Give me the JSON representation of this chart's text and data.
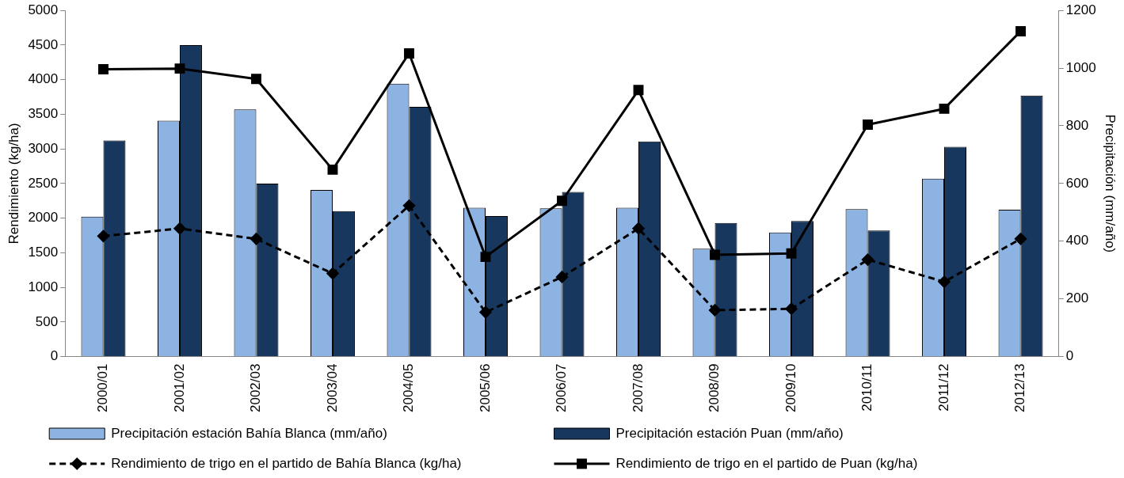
{
  "chart_data": {
    "type": "bar",
    "ylabel": "Rendimiento (kg/ha)",
    "y2label": "Precipitación (mm/año)",
    "categories": [
      "2000/01",
      "2001/02",
      "2002/03",
      "2003/04",
      "2004/05",
      "2005/06",
      "2006/07",
      "2007/08",
      "2008/09",
      "2009/10",
      "2010/11",
      "2011/12",
      "2012/13"
    ],
    "series": [
      {
        "name": "Precipitación estación Bahía Blanca (mm/año)",
        "axis": "y2",
        "color": "#8db3e2",
        "values": [
          485,
          818,
          857,
          578,
          946,
          516,
          514,
          516,
          374,
          430,
          511,
          617,
          509
        ]
      },
      {
        "name": "Precipitación estación Puan (mm/año)",
        "axis": "y2",
        "color": "#17375e",
        "values": [
          749,
          1080,
          600,
          504,
          866,
          487,
          571,
          746,
          463,
          470,
          437,
          727,
          905
        ]
      },
      {
        "name": "Rendimiento de trigo en el partido de Bahía Blanca (kg/ha)",
        "type": "line",
        "color": "#000000",
        "marker": "diamond",
        "line_style": "dashed",
        "values": [
          1740,
          1850,
          1700,
          1200,
          2180,
          640,
          1150,
          1850,
          670,
          690,
          1400,
          1080,
          1700
        ]
      },
      {
        "name": "Rendimiento de trigo en el partido de Puan (kg/ha)",
        "type": "line",
        "color": "#000000",
        "marker": "square",
        "line_style": "solid",
        "values": [
          4150,
          4160,
          4010,
          2700,
          4380,
          1440,
          2250,
          3850,
          1470,
          1490,
          3350,
          3580,
          4700
        ]
      }
    ],
    "ylim": [
      0,
      5000
    ],
    "yticks": [
      0,
      500,
      1000,
      1500,
      2000,
      2500,
      3000,
      3500,
      4000,
      4500,
      5000
    ],
    "y2lim": [
      0,
      1200
    ],
    "y2ticks": [
      0,
      200,
      400,
      600,
      800,
      1000,
      1200
    ],
    "grid": false,
    "legend": "bottom"
  }
}
